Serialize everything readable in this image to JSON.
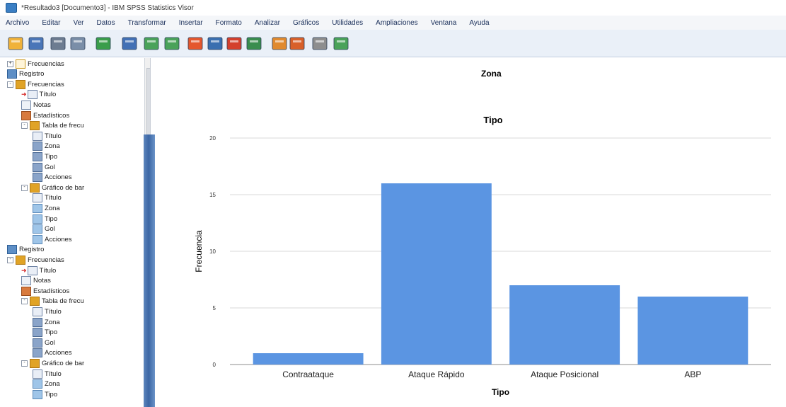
{
  "window": {
    "title": "*Resultado3 [Documento3] - IBM SPSS Statistics Visor"
  },
  "menu": [
    "Archivo",
    "Editar",
    "Ver",
    "Datos",
    "Transformar",
    "Insertar",
    "Formato",
    "Analizar",
    "Gráficos",
    "Utilidades",
    "Ampliaciones",
    "Ventana",
    "Ayuda"
  ],
  "toolbar": {
    "icons": [
      "open-folder-icon",
      "save-icon",
      "print-icon",
      "print-preview-icon",
      "export-icon",
      "recall-dialog-icon",
      "undo-icon",
      "redo-icon",
      "goto-data-icon",
      "goto-case-icon",
      "goto-variable-icon",
      "variables-icon",
      "designate-window-icon",
      "promote-icon",
      "demote-icon",
      "hide-icon",
      "show-icon"
    ]
  },
  "nav_tree": [
    {
      "level": 1,
      "icon": "freq-empty",
      "expander": "+",
      "label": "Frecuencias"
    },
    {
      "level": 1,
      "icon": "log",
      "label": "Registro"
    },
    {
      "level": 1,
      "icon": "freq",
      "expander": "-",
      "label": "Frecuencias"
    },
    {
      "level": 2,
      "icon": "title",
      "arrow": true,
      "label": "Título"
    },
    {
      "level": 2,
      "icon": "notes",
      "label": "Notas"
    },
    {
      "level": 2,
      "icon": "stats",
      "label": "Estadísticos"
    },
    {
      "level": 2,
      "icon": "freq",
      "expander": "-",
      "label": "Tabla de frecu"
    },
    {
      "level": 3,
      "icon": "title",
      "label": "Título"
    },
    {
      "level": 3,
      "icon": "table",
      "label": "Zona"
    },
    {
      "level": 3,
      "icon": "table",
      "label": "Tipo"
    },
    {
      "level": 3,
      "icon": "table",
      "label": "Gol"
    },
    {
      "level": 3,
      "icon": "table",
      "label": "Acciones"
    },
    {
      "level": 2,
      "icon": "freq",
      "expander": "-",
      "label": "Gráfico de bar"
    },
    {
      "level": 3,
      "icon": "title",
      "label": "Título"
    },
    {
      "level": 3,
      "icon": "chart",
      "label": "Zona"
    },
    {
      "level": 3,
      "icon": "chart",
      "label": "Tipo"
    },
    {
      "level": 3,
      "icon": "chart",
      "label": "Gol"
    },
    {
      "level": 3,
      "icon": "chart",
      "label": "Acciones"
    },
    {
      "level": 1,
      "icon": "log",
      "label": "Registro"
    },
    {
      "level": 1,
      "icon": "freq",
      "expander": "-",
      "label": "Frecuencias"
    },
    {
      "level": 2,
      "icon": "title",
      "arrow": true,
      "label": "Título"
    },
    {
      "level": 2,
      "icon": "notes",
      "label": "Notas"
    },
    {
      "level": 2,
      "icon": "stats",
      "label": "Estadísticos"
    },
    {
      "level": 2,
      "icon": "freq",
      "expander": "-",
      "label": "Tabla de frecu"
    },
    {
      "level": 3,
      "icon": "title",
      "label": "Título"
    },
    {
      "level": 3,
      "icon": "table",
      "label": "Zona"
    },
    {
      "level": 3,
      "icon": "table",
      "label": "Tipo"
    },
    {
      "level": 3,
      "icon": "table",
      "label": "Gol"
    },
    {
      "level": 3,
      "icon": "table",
      "label": "Acciones"
    },
    {
      "level": 2,
      "icon": "freq",
      "expander": "-",
      "label": "Gráfico de bar"
    },
    {
      "level": 3,
      "icon": "title",
      "label": "Título"
    },
    {
      "level": 3,
      "icon": "chart",
      "label": "Zona"
    },
    {
      "level": 3,
      "icon": "chart",
      "label": "Tipo"
    }
  ],
  "output": {
    "heading": "Zona"
  },
  "chart_data": {
    "type": "bar",
    "title": "Tipo",
    "xlabel": "Tipo",
    "ylabel": "Frecuencia",
    "categories": [
      "Contraataque",
      "Ataque Rápido",
      "Ataque Posicional",
      "ABP"
    ],
    "values": [
      1,
      16,
      7,
      6
    ],
    "ylim": [
      0,
      20
    ],
    "yticks": [
      0,
      5,
      10,
      15,
      20
    ],
    "grid": true,
    "bar_color": "#5b95e2"
  }
}
